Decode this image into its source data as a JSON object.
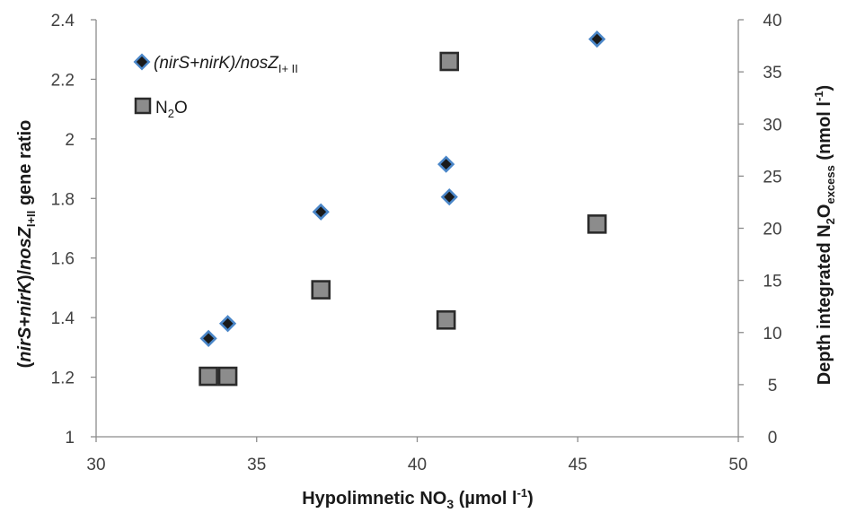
{
  "chart_data": {
    "type": "scatter",
    "xlabel": {
      "main": "Hypolimnetic NO",
      "sub": "3",
      "unit_pre": " (µmol l",
      "sup": "-1",
      "unit_post": ")"
    },
    "ylabel_left": {
      "open": "(",
      "ital1": "nirS+nirK",
      "mid": ")/",
      "ital2": "nosZ",
      "sub": "I+II",
      "end": " gene ratio"
    },
    "ylabel_right": {
      "pre": "Depth integrated N",
      "sub1": "2",
      "mid": "O",
      "sub2": "excess",
      "unit_pre": " (nmol l",
      "sup": "-1",
      "unit_post": ")"
    },
    "x_ticks": [
      "30",
      "35",
      "40",
      "45",
      "50"
    ],
    "y_left_ticks": [
      "1",
      "1.2",
      "1.4",
      "1.6",
      "1.8",
      "2",
      "2.2",
      "2.4"
    ],
    "y_right_ticks": [
      "0",
      "5",
      "10",
      "15",
      "20",
      "25",
      "30",
      "35",
      "40"
    ],
    "xlim": [
      30,
      50
    ],
    "ylim_left": [
      1,
      2.4
    ],
    "ylim_right": [
      0,
      40
    ],
    "grid": false,
    "legend_position": "top-left",
    "series": [
      {
        "name_parts": {
          "open": "(",
          "ital1": "nirS+nirK",
          "mid": ")/",
          "ital2": "nosZ",
          "sub": "I+ II"
        },
        "marker": "diamond",
        "axis": "left",
        "fill": "#1a1a1a",
        "stroke": "#4a86c8",
        "points": [
          {
            "x": 33.5,
            "y": 1.33
          },
          {
            "x": 34.1,
            "y": 1.38
          },
          {
            "x": 37.0,
            "y": 1.755
          },
          {
            "x": 40.9,
            "y": 1.915
          },
          {
            "x": 41.0,
            "y": 1.805
          },
          {
            "x": 45.6,
            "y": 2.335
          }
        ]
      },
      {
        "name_parts": {
          "pre": "N",
          "sub": "2",
          "post": "O"
        },
        "marker": "square",
        "axis": "right",
        "fill": "#8c8c8c",
        "stroke": "#2b2b2b",
        "points": [
          {
            "x": 33.5,
            "y": 5.8
          },
          {
            "x": 34.1,
            "y": 5.8
          },
          {
            "x": 37.0,
            "y": 14.1
          },
          {
            "x": 40.9,
            "y": 11.2
          },
          {
            "x": 41.0,
            "y": 36.0
          },
          {
            "x": 45.6,
            "y": 20.4
          }
        ]
      }
    ]
  }
}
